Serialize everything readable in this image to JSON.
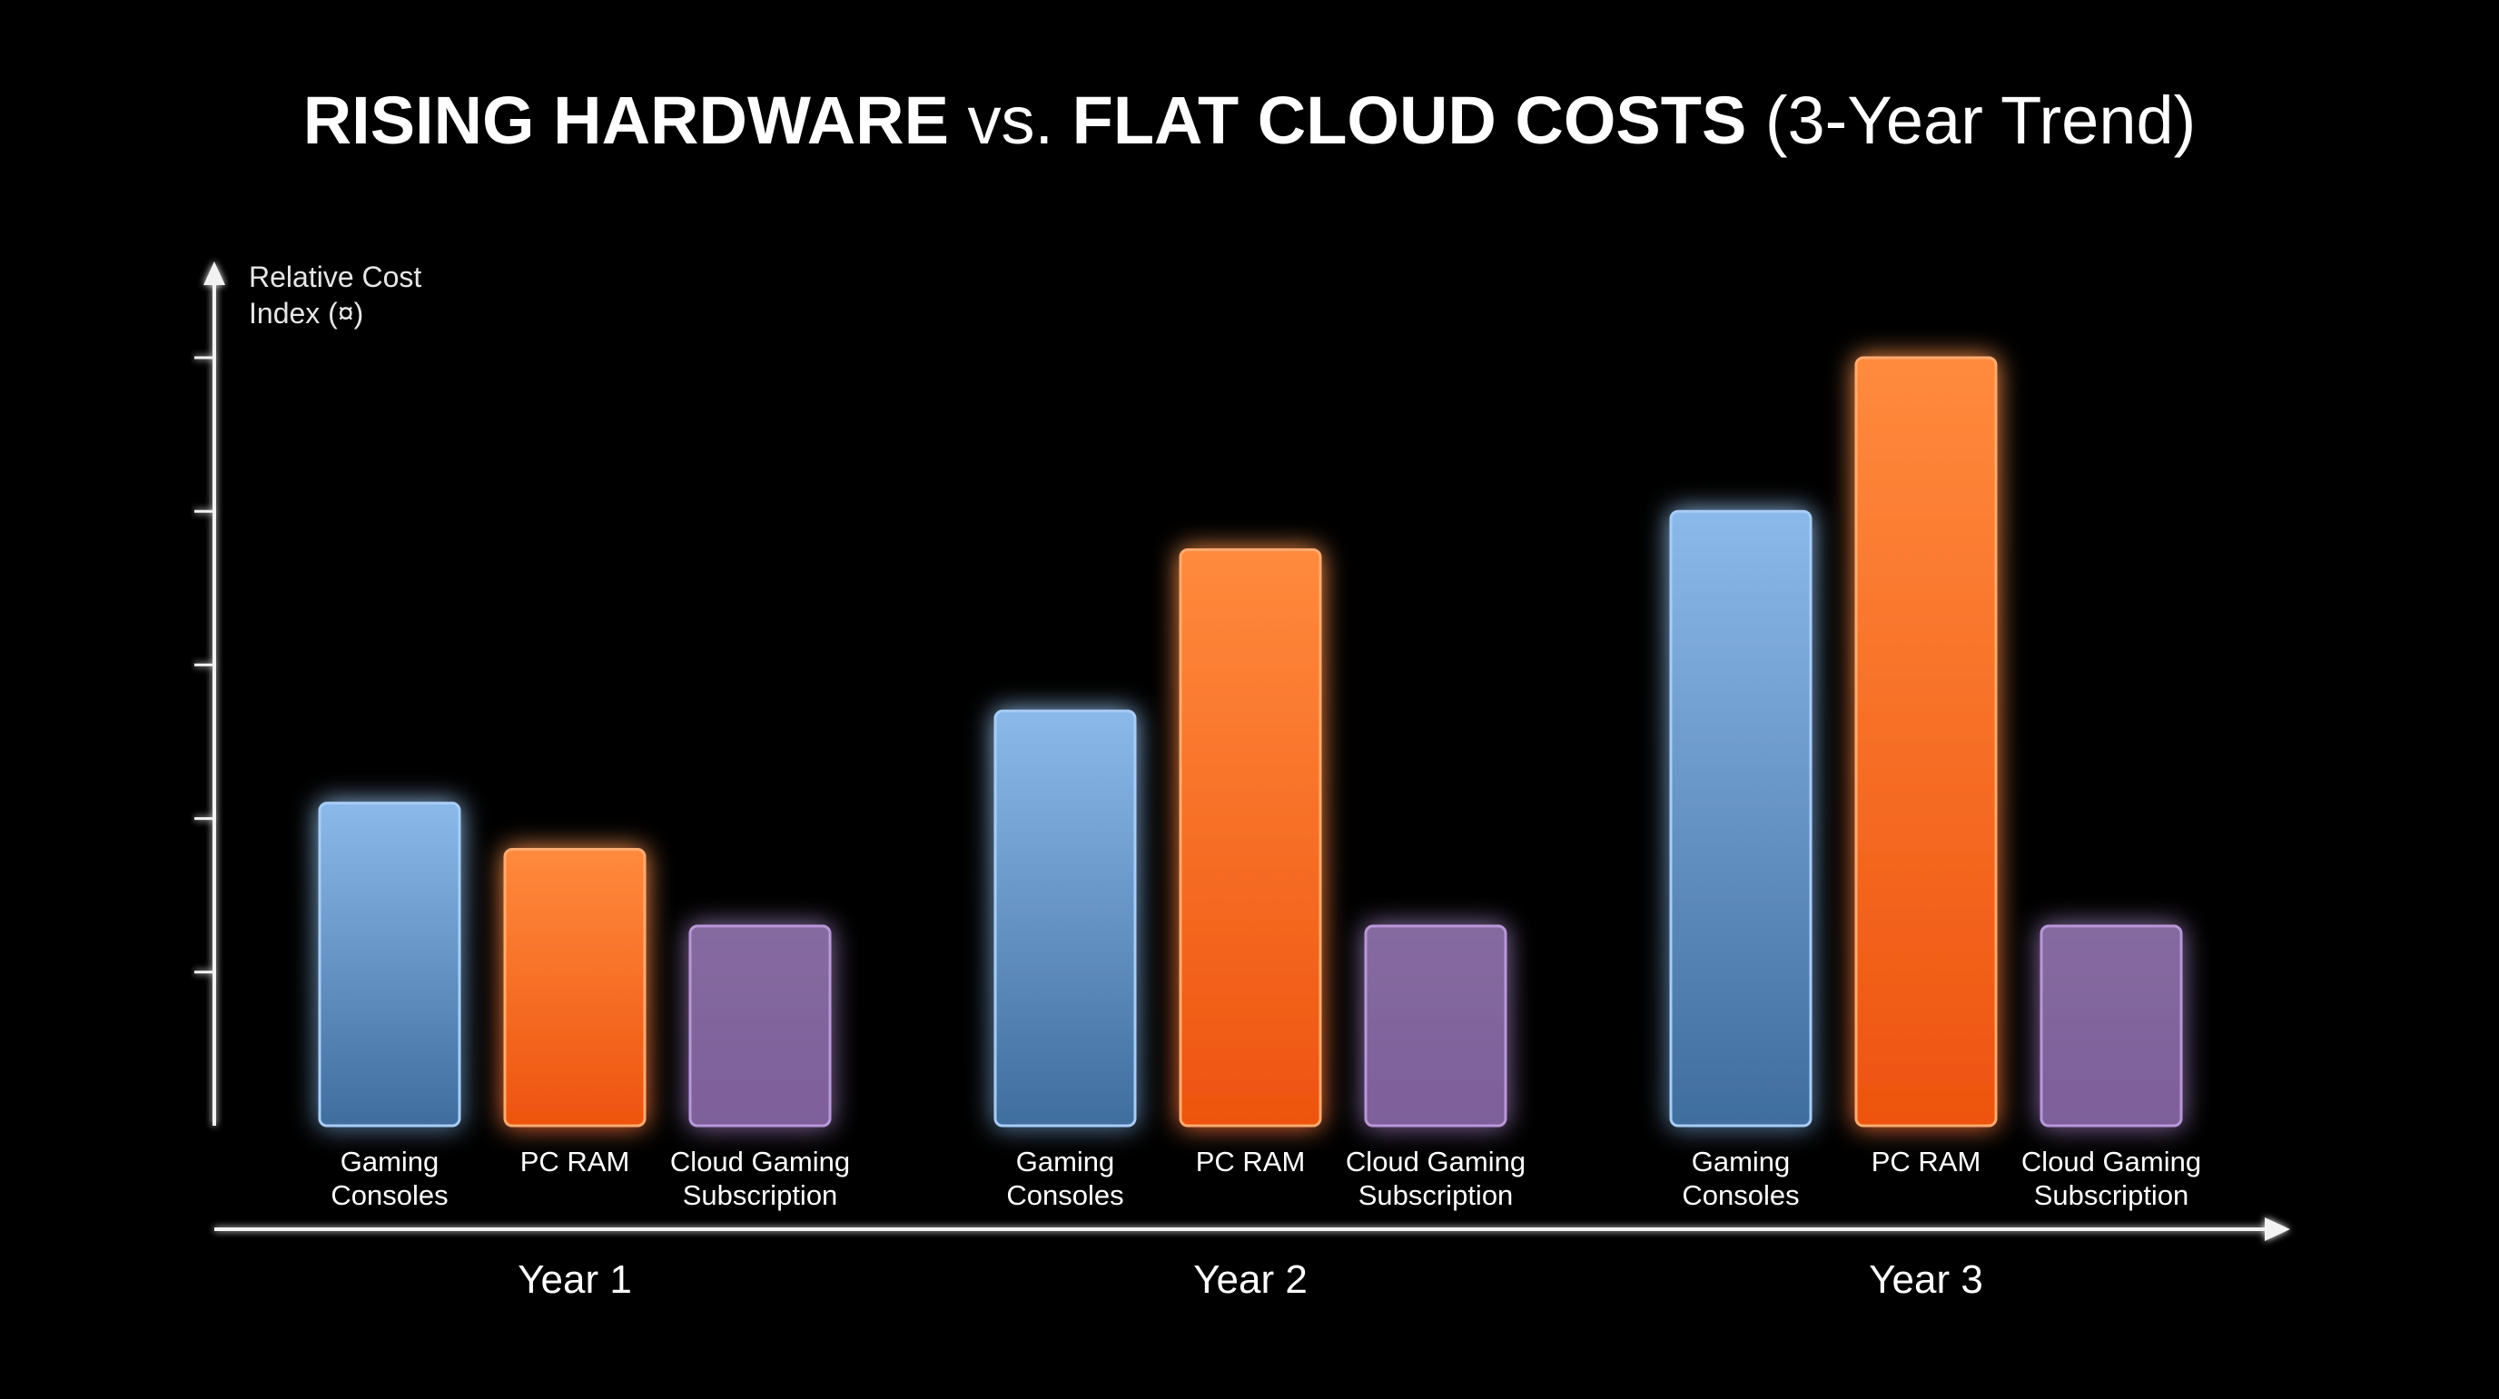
{
  "chart_data": {
    "type": "bar",
    "title": {
      "part1": "RISING HARDWARE",
      "part2": " vs. ",
      "part3": "FLAT CLOUD COSTS",
      "part4": " (3-Year Trend)"
    },
    "ylabel": [
      "Relative Cost",
      "Index (¤)"
    ],
    "xlabel": "",
    "groups": [
      "Year 1",
      "Year 2",
      "Year 3"
    ],
    "categories": [
      {
        "label": [
          "Gaming",
          "Consoles"
        ]
      },
      {
        "label": [
          "PC RAM"
        ]
      },
      {
        "label": [
          "Cloud Gaming",
          "Subscription"
        ]
      }
    ],
    "series": [
      {
        "values": [
          2.1,
          2.7,
          4.0
        ]
      },
      {
        "values": [
          1.8,
          3.75,
          5.0
        ]
      },
      {
        "values": [
          1.3,
          1.3,
          1.3
        ]
      }
    ],
    "ylim": [
      0,
      5
    ],
    "y_ticks": [
      1,
      2,
      3,
      4,
      5
    ],
    "y_tick_labels_shown": false,
    "grid": false,
    "colors": {
      "background": "#000000",
      "text": "#ffffff",
      "axis": "#f2f2f2",
      "series": [
        {
          "top": "#8bb9ea",
          "bottom": "#3f6d9e",
          "edge": "#a8cdf5",
          "glow": "#6aa8ee"
        },
        {
          "top": "#ff8a3d",
          "bottom": "#ee530f",
          "edge": "#ffab70",
          "glow": "#ff7a22"
        },
        {
          "top": "#856aa0",
          "bottom": "#7e5f9a",
          "edge": "#b898d8",
          "glow": "#a07ad0"
        }
      ]
    }
  }
}
